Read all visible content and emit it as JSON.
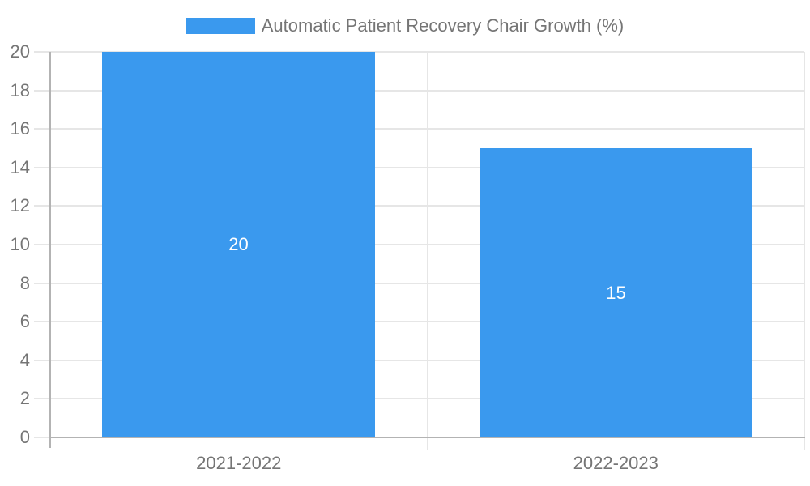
{
  "chart_data": {
    "type": "bar",
    "title": "Automatic Patient Recovery Chair Growth (%)",
    "legend_position": "top",
    "categories": [
      "2021-2022",
      "2022-2023"
    ],
    "series": [
      {
        "name": "Automatic Patient Recovery Chair Growth (%)",
        "values": [
          20,
          15
        ]
      }
    ],
    "data_labels": [
      "20",
      "15"
    ],
    "ylim": [
      0,
      20
    ],
    "yticks": [
      0,
      2,
      4,
      6,
      8,
      10,
      12,
      14,
      16,
      18,
      20
    ],
    "grid": true,
    "colors": {
      "bar": "#3A99EE",
      "grid": "#E6E6E6",
      "axis": "#B3B3B3",
      "tick_label": "#757575",
      "legend_label": "#757575",
      "data_label": "#FFFFFF",
      "background": "#FFFFFF"
    }
  }
}
